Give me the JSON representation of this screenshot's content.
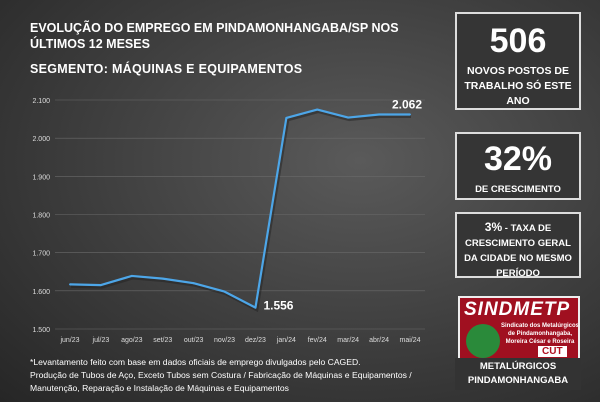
{
  "header": {
    "title": "EVOLUÇÃO DO EMPREGO EM PINDAMONHANGABA/SP NOS ÚLTIMOS 12 MESES",
    "segment": "SEGMENTO: MÁQUINAS E EQUIPAMENTOS"
  },
  "stats": [
    {
      "value": "506",
      "label": "NOVOS POSTOS DE TRABALHO SÓ ESTE ANO"
    },
    {
      "value": "32%",
      "label": "DE CRESCIMENTO"
    },
    {
      "value": "3%",
      "label": " - TAXA DE CRESCIMENTO GERAL DA CIDADE NO MESMO PERÍODO"
    }
  ],
  "logo": {
    "name": "SINDMETP",
    "subtitle": "Sindicato dos Metalúrgicos de Pindamonhangaba, Moreira César e Roseira",
    "badge": "CUT"
  },
  "org": "METALÚRGICOS PINDAMONHANGABA",
  "note": [
    "*Levantamento feito com base em dados oficiais de emprego divulgados pelo CAGED.",
    "Produção de Tubos de Aço, Exceto Tubos sem Costura / Fabricação de Máquinas e Equipamentos /",
    "Manutenção, Reparação e Instalação de Máquinas e Equipamentos"
  ],
  "colors": {
    "line": "#4da6e8"
  },
  "chart_data": {
    "type": "line",
    "title": "",
    "xlabel": "",
    "ylabel": "",
    "ylim": [
      1500,
      2100
    ],
    "yticks": [
      "1.500",
      "1.600",
      "1.700",
      "1.800",
      "1.900",
      "2.000",
      "2.100"
    ],
    "grid": true,
    "categories": [
      "jun/23",
      "jul/23",
      "ago/23",
      "set/23",
      "out/23",
      "nov/23",
      "dez/23",
      "jan/24",
      "fev/24",
      "mar/24",
      "abr/24",
      "mai/24"
    ],
    "values": [
      1617,
      1615,
      1639,
      1632,
      1620,
      1598,
      1556,
      2053,
      2075,
      2054,
      2062,
      2062
    ],
    "annotations": [
      {
        "index": 6,
        "text": "1.556"
      },
      {
        "index": 11,
        "text": "2.062"
      }
    ]
  }
}
